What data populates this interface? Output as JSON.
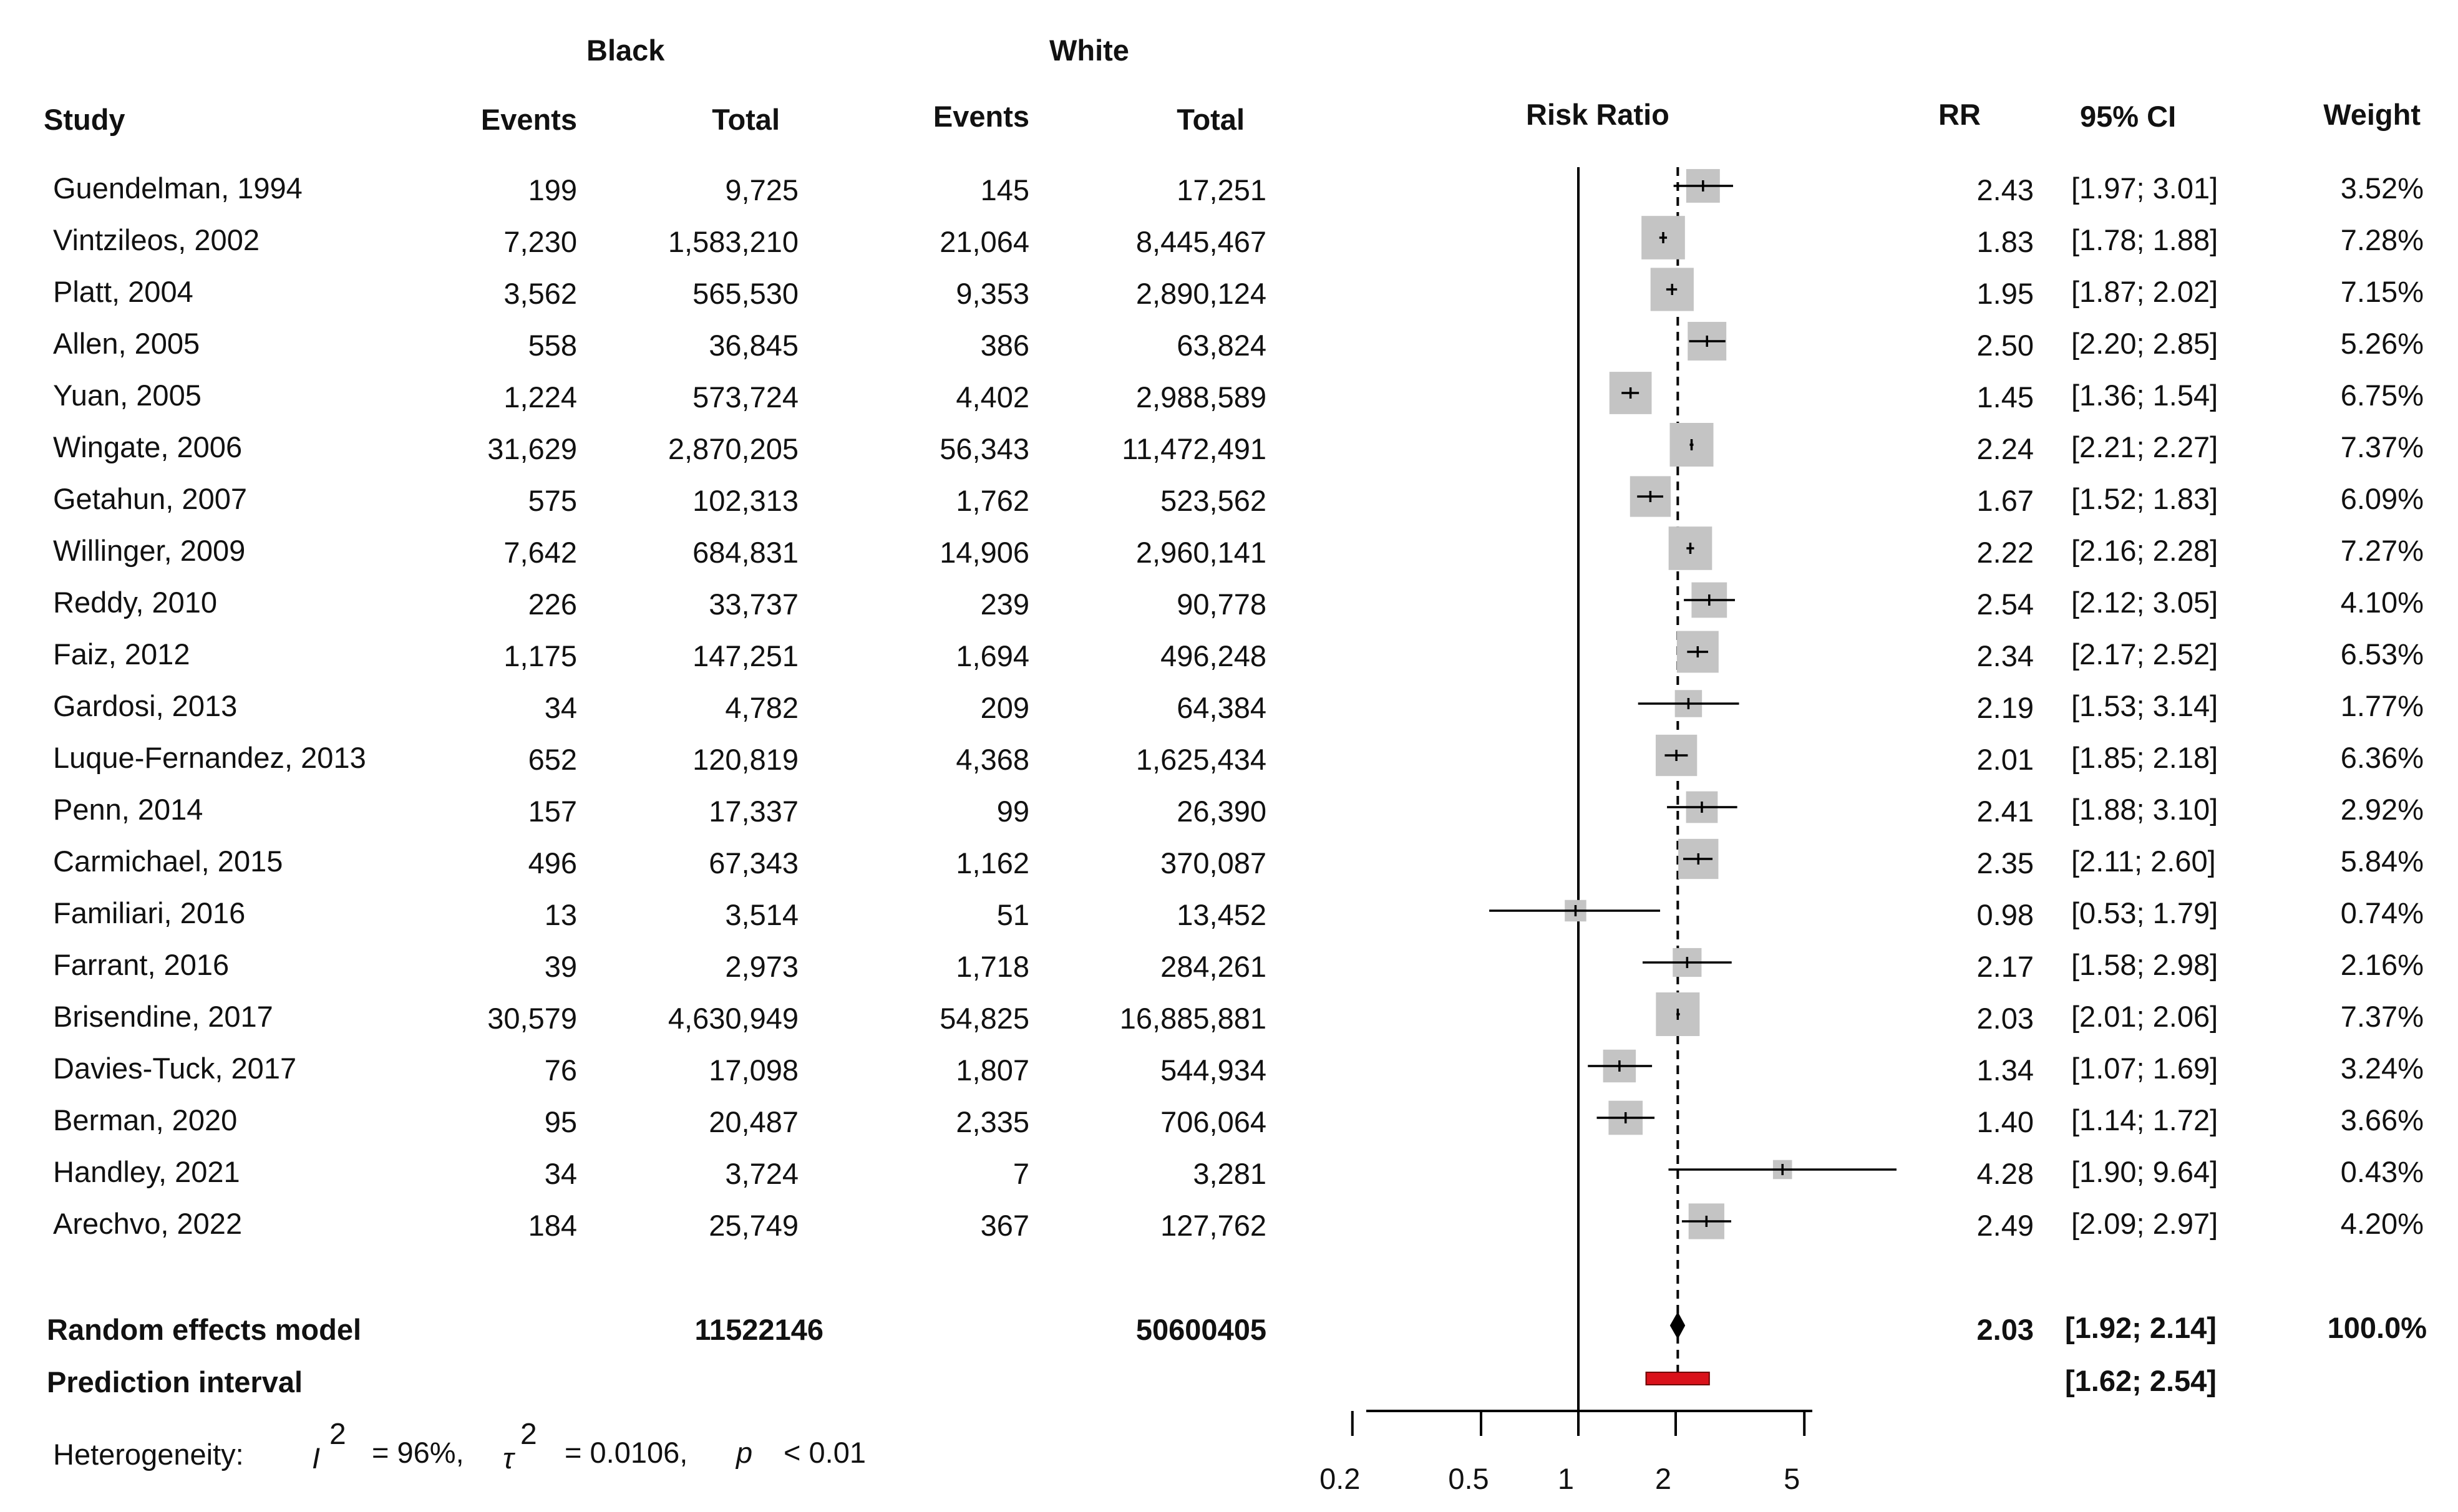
{
  "group_headers": {
    "black": "Black",
    "white": "White"
  },
  "columns": {
    "study": "Study",
    "black_events": "Events",
    "black_total": "Total",
    "white_events": "Events",
    "white_total": "Total",
    "plot": "Risk Ratio",
    "rr": "RR",
    "ci": "95% CI",
    "weight": "Weight"
  },
  "chart_data": {
    "type": "forest",
    "title": "Risk Ratio",
    "xscale": "log",
    "xlim": [
      0.2,
      5
    ],
    "xticks": [
      "0.2",
      "0.5",
      "1",
      "2",
      "5"
    ],
    "null_line": 1,
    "summary_line": 2.03,
    "studies": [
      {
        "study": "Guendelman, 1994",
        "black_events": "199",
        "black_total": "9,725",
        "white_events": "145",
        "white_total": "17,251",
        "rr": 2.43,
        "lo": 1.97,
        "hi": 3.01,
        "rr_text": "2.43",
        "ci_text": "[1.97; 3.01]",
        "weight": 3.52,
        "weight_text": "3.52%"
      },
      {
        "study": "Vintzileos, 2002",
        "black_events": "7,230",
        "black_total": "1,583,210",
        "white_events": "21,064",
        "white_total": "8,445,467",
        "rr": 1.83,
        "lo": 1.78,
        "hi": 1.88,
        "rr_text": "1.83",
        "ci_text": "[1.78; 1.88]",
        "weight": 7.28,
        "weight_text": "7.28%"
      },
      {
        "study": "Platt, 2004",
        "black_events": "3,562",
        "black_total": "565,530",
        "white_events": "9,353",
        "white_total": "2,890,124",
        "rr": 1.95,
        "lo": 1.87,
        "hi": 2.02,
        "rr_text": "1.95",
        "ci_text": "[1.87; 2.02]",
        "weight": 7.15,
        "weight_text": "7.15%"
      },
      {
        "study": "Allen,  2005",
        "black_events": "558",
        "black_total": "36,845",
        "white_events": "386",
        "white_total": "63,824",
        "rr": 2.5,
        "lo": 2.2,
        "hi": 2.85,
        "rr_text": "2.50",
        "ci_text": "[2.20; 2.85]",
        "weight": 5.26,
        "weight_text": "5.26%"
      },
      {
        "study": "Yuan, 2005",
        "black_events": "1,224",
        "black_total": "573,724",
        "white_events": "4,402",
        "white_total": "2,988,589",
        "rr": 1.45,
        "lo": 1.36,
        "hi": 1.54,
        "rr_text": "1.45",
        "ci_text": "[1.36; 1.54]",
        "weight": 6.75,
        "weight_text": "6.75%"
      },
      {
        "study": "Wingate, 2006",
        "black_events": "31,629",
        "black_total": "2,870,205",
        "white_events": "56,343",
        "white_total": "11,472,491",
        "rr": 2.24,
        "lo": 2.21,
        "hi": 2.27,
        "rr_text": "2.24",
        "ci_text": "[2.21; 2.27]",
        "weight": 7.37,
        "weight_text": "7.37%"
      },
      {
        "study": "Getahun, 2007",
        "black_events": "575",
        "black_total": "102,313",
        "white_events": "1,762",
        "white_total": "523,562",
        "rr": 1.67,
        "lo": 1.52,
        "hi": 1.83,
        "rr_text": "1.67",
        "ci_text": "[1.52; 1.83]",
        "weight": 6.09,
        "weight_text": "6.09%"
      },
      {
        "study": "Willinger, 2009",
        "black_events": "7,642",
        "black_total": "684,831",
        "white_events": "14,906",
        "white_total": "2,960,141",
        "rr": 2.22,
        "lo": 2.16,
        "hi": 2.28,
        "rr_text": "2.22",
        "ci_text": "[2.16; 2.28]",
        "weight": 7.27,
        "weight_text": "7.27%"
      },
      {
        "study": "Reddy, 2010",
        "black_events": "226",
        "black_total": "33,737",
        "white_events": "239",
        "white_total": "90,778",
        "rr": 2.54,
        "lo": 2.12,
        "hi": 3.05,
        "rr_text": "2.54",
        "ci_text": "[2.12; 3.05]",
        "weight": 4.1,
        "weight_text": "4.10%"
      },
      {
        "study": "Faiz, 2012",
        "black_events": "1,175",
        "black_total": "147,251",
        "white_events": "1,694",
        "white_total": "496,248",
        "rr": 2.34,
        "lo": 2.17,
        "hi": 2.52,
        "rr_text": "2.34",
        "ci_text": "[2.17; 2.52]",
        "weight": 6.53,
        "weight_text": "6.53%"
      },
      {
        "study": "Gardosi, 2013",
        "black_events": "34",
        "black_total": "4,782",
        "white_events": "209",
        "white_total": "64,384",
        "rr": 2.19,
        "lo": 1.53,
        "hi": 3.14,
        "rr_text": "2.19",
        "ci_text": "[1.53; 3.14]",
        "weight": 1.77,
        "weight_text": "1.77%"
      },
      {
        "study": "Luque-Fernandez, 2013",
        "black_events": "652",
        "black_total": "120,819",
        "white_events": "4,368",
        "white_total": "1,625,434",
        "rr": 2.01,
        "lo": 1.85,
        "hi": 2.18,
        "rr_text": "2.01",
        "ci_text": "[1.85; 2.18]",
        "weight": 6.36,
        "weight_text": "6.36%"
      },
      {
        "study": "Penn, 2014",
        "black_events": "157",
        "black_total": "17,337",
        "white_events": "99",
        "white_total": "26,390",
        "rr": 2.41,
        "lo": 1.88,
        "hi": 3.1,
        "rr_text": "2.41",
        "ci_text": "[1.88; 3.10]",
        "weight": 2.92,
        "weight_text": "2.92%"
      },
      {
        "study": "Carmichael, 2015",
        "black_events": "496",
        "black_total": "67,343",
        "white_events": "1,162",
        "white_total": "370,087",
        "rr": 2.35,
        "lo": 2.11,
        "hi": 2.6,
        "rr_text": "2.35",
        "ci_text": "[2.11; 2.60]",
        "weight": 5.84,
        "weight_text": "5.84%"
      },
      {
        "study": "Familiari, 2016",
        "black_events": "13",
        "black_total": "3,514",
        "white_events": "51",
        "white_total": "13,452",
        "rr": 0.98,
        "lo": 0.53,
        "hi": 1.79,
        "rr_text": "0.98",
        "ci_text": "[0.53; 1.79]",
        "weight": 0.74,
        "weight_text": "0.74%"
      },
      {
        "study": "Farrant, 2016",
        "black_events": "39",
        "black_total": "2,973",
        "white_events": "1,718",
        "white_total": "284,261",
        "rr": 2.17,
        "lo": 1.58,
        "hi": 2.98,
        "rr_text": "2.17",
        "ci_text": "[1.58; 2.98]",
        "weight": 2.16,
        "weight_text": "2.16%"
      },
      {
        "study": "Brisendine, 2017",
        "black_events": "30,579",
        "black_total": "4,630,949",
        "white_events": "54,825",
        "white_total": "16,885,881",
        "rr": 2.03,
        "lo": 2.01,
        "hi": 2.06,
        "rr_text": "2.03",
        "ci_text": "[2.01; 2.06]",
        "weight": 7.37,
        "weight_text": "7.37%"
      },
      {
        "study": "Davies-Tuck, 2017",
        "black_events": "76",
        "black_total": "17,098",
        "white_events": "1,807",
        "white_total": "544,934",
        "rr": 1.34,
        "lo": 1.07,
        "hi": 1.69,
        "rr_text": "1.34",
        "ci_text": "[1.07; 1.69]",
        "weight": 3.24,
        "weight_text": "3.24%"
      },
      {
        "study": "Berman, 2020",
        "black_events": "95",
        "black_total": "20,487",
        "white_events": "2,335",
        "white_total": "706,064",
        "rr": 1.4,
        "lo": 1.14,
        "hi": 1.72,
        "rr_text": "1.40",
        "ci_text": "[1.14; 1.72]",
        "weight": 3.66,
        "weight_text": "3.66%"
      },
      {
        "study": "Handley, 2021",
        "black_events": "34",
        "black_total": "3,724",
        "white_events": "7",
        "white_total": "3,281",
        "rr": 4.28,
        "lo": 1.9,
        "hi": 9.64,
        "rr_text": "4.28",
        "ci_text": "[1.90; 9.64]",
        "weight": 0.43,
        "weight_text": "0.43%"
      },
      {
        "study": "Arechvo, 2022",
        "black_events": "184",
        "black_total": "25,749",
        "white_events": "367",
        "white_total": "127,762",
        "rr": 2.49,
        "lo": 2.09,
        "hi": 2.97,
        "rr_text": "2.49",
        "ci_text": "[2.09; 2.97]",
        "weight": 4.2,
        "weight_text": "4.20%"
      }
    ],
    "random_effects": {
      "label": "Random effects model",
      "black_total": "11522146",
      "white_total": "50600405",
      "rr": 2.03,
      "lo": 1.92,
      "hi": 2.14,
      "rr_text": "2.03",
      "ci_text": "[1.92; 2.14]",
      "weight_text": "100.0%"
    },
    "prediction_interval": {
      "label": "Prediction interval",
      "lo": 1.62,
      "hi": 2.54,
      "ci_text": "[1.62; 2.54]"
    },
    "heterogeneity": {
      "label": "Heterogeneity:",
      "i2_symbol": "I",
      "sup": "2",
      "i2_text": "= 96%,",
      "tau_symbol": "τ",
      "tau2_text": "= 0.0106,",
      "p_symbol": "p",
      "p_text": "< 0.01"
    },
    "colors": {
      "box": "#c4c4c4",
      "line": "#000000",
      "prediction": "#d9111a",
      "diamond": "#000000"
    }
  }
}
